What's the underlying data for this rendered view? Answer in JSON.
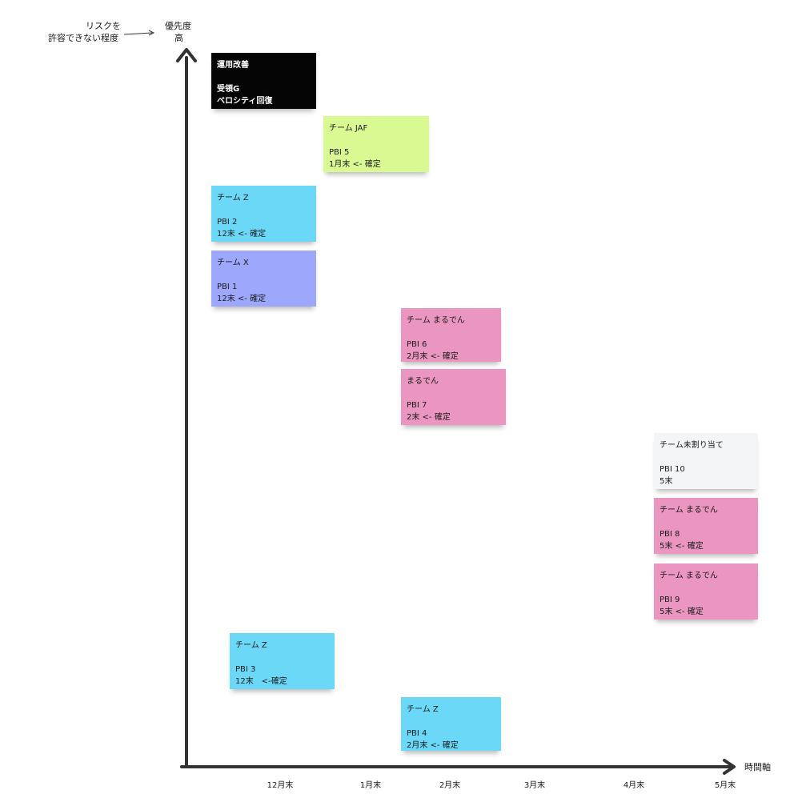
{
  "axes": {
    "y_label_line1": "優先度",
    "y_label_line2": "高",
    "x_label": "時間軸",
    "risk_line1": "リスクを",
    "risk_line2": "許容できない程度"
  },
  "ticks": [
    "12月末",
    "1月末",
    "2月末",
    "3月末",
    "4月末",
    "5月末"
  ],
  "colors": {
    "black": "#050505",
    "green": "#d9f993",
    "blue": "#6bd8f8",
    "purple": "#9da7fc",
    "pink": "#ea96c0",
    "gray": "#f4f5f6",
    "axis": "#333333"
  },
  "notes": [
    {
      "color": "black",
      "title": "運用改善",
      "body1": "受領G",
      "body2": "ベロシティ回復"
    },
    {
      "color": "green",
      "title": "チーム JAF",
      "body1": "PBI 5",
      "body2": "1月末 <- 確定"
    },
    {
      "color": "blue",
      "title": "チーム Z",
      "body1": "PBI 2",
      "body2": "12末 <- 確定"
    },
    {
      "color": "purple",
      "title": "チーム X",
      "body1": "PBI 1",
      "body2": "12末 <- 確定"
    },
    {
      "color": "pink",
      "title": "チーム まるでん",
      "body1": "PBI 6",
      "body2": "2月末 <- 確定"
    },
    {
      "color": "pink",
      "title": "まるでん",
      "body1": "PBI 7",
      "body2": "2末 <- 確定"
    },
    {
      "color": "gray",
      "title": "チーム未割り当て",
      "body1": "PBI 10",
      "body2": "5末"
    },
    {
      "color": "pink",
      "title": "チーム まるでん",
      "body1": "PBI 8",
      "body2": "5末 <- 確定"
    },
    {
      "color": "pink",
      "title": "チーム まるでん",
      "body1": "PBI 9",
      "body2": "5末 <- 確定"
    },
    {
      "color": "blue",
      "title": "チーム Z",
      "body1": "PBI 3",
      "body2": "12末　<-確定"
    },
    {
      "color": "blue",
      "title": "チーム Z",
      "body1": "PBI 4",
      "body2": "2月末 <- 確定"
    }
  ]
}
